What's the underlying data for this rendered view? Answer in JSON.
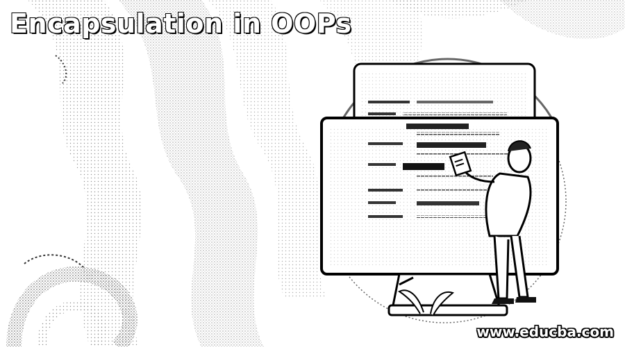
{
  "banner": {
    "title": "Encapsulation in OOPs",
    "website": "www.educba.com"
  },
  "icons": [
    "monitor-illustration",
    "person-illustration",
    "code-document-illustration"
  ],
  "colors": {
    "background": "#ffffff",
    "ink": "#000000",
    "stipple": "#9a9a9a"
  }
}
